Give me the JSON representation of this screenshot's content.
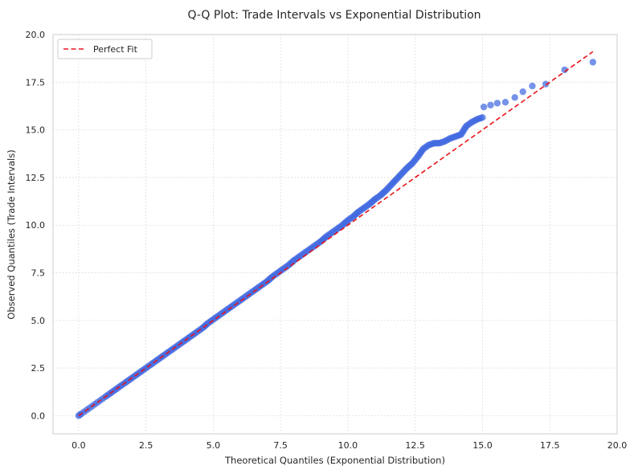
{
  "chart_data": {
    "type": "scatter",
    "title": "Q-Q Plot: Trade Intervals vs Exponential Distribution",
    "xlabel": "Theoretical Quantiles (Exponential Distribution)",
    "ylabel": "Observed Quantiles (Trade Intervals)",
    "xlim": [
      -0.95,
      20.0
    ],
    "ylim": [
      -0.95,
      20.0
    ],
    "xticks": [
      "0.0",
      "2.5",
      "5.0",
      "7.5",
      "10.0",
      "12.5",
      "15.0",
      "17.5",
      "20.0"
    ],
    "yticks": [
      "0.0",
      "2.5",
      "5.0",
      "7.5",
      "10.0",
      "12.5",
      "15.0",
      "17.5",
      "20.0"
    ],
    "grid": true,
    "legend_position": "top-left",
    "reference_line": {
      "name": "Perfect Fit",
      "x": [
        0,
        19.1
      ],
      "y": [
        0,
        19.1
      ],
      "color": "#e8141b",
      "style": "dashed"
    },
    "point_color": "#4169e1",
    "points": [
      [
        0.0,
        0.0
      ],
      [
        0.05,
        0.05
      ],
      [
        0.1,
        0.1
      ],
      [
        0.2,
        0.2
      ],
      [
        0.3,
        0.3
      ],
      [
        0.4,
        0.4
      ],
      [
        0.5,
        0.5
      ],
      [
        0.6,
        0.6
      ],
      [
        0.7,
        0.7
      ],
      [
        0.8,
        0.8
      ],
      [
        0.9,
        0.9
      ],
      [
        1.0,
        1.0
      ],
      [
        1.2,
        1.2
      ],
      [
        1.4,
        1.4
      ],
      [
        1.6,
        1.6
      ],
      [
        1.8,
        1.8
      ],
      [
        2.0,
        2.0
      ],
      [
        2.2,
        2.2
      ],
      [
        2.4,
        2.4
      ],
      [
        2.6,
        2.6
      ],
      [
        2.8,
        2.8
      ],
      [
        3.0,
        3.0
      ],
      [
        3.2,
        3.2
      ],
      [
        3.4,
        3.4
      ],
      [
        3.6,
        3.6
      ],
      [
        3.8,
        3.8
      ],
      [
        4.0,
        4.0
      ],
      [
        4.2,
        4.2
      ],
      [
        4.4,
        4.4
      ],
      [
        4.6,
        4.6
      ],
      [
        4.8,
        4.85
      ],
      [
        5.0,
        5.05
      ],
      [
        5.2,
        5.25
      ],
      [
        5.4,
        5.45
      ],
      [
        5.6,
        5.65
      ],
      [
        5.8,
        5.85
      ],
      [
        6.0,
        6.05
      ],
      [
        6.2,
        6.25
      ],
      [
        6.4,
        6.45
      ],
      [
        6.6,
        6.65
      ],
      [
        6.8,
        6.85
      ],
      [
        7.0,
        7.05
      ],
      [
        7.2,
        7.3
      ],
      [
        7.4,
        7.5
      ],
      [
        7.6,
        7.7
      ],
      [
        7.8,
        7.9
      ],
      [
        8.0,
        8.15
      ],
      [
        8.2,
        8.35
      ],
      [
        8.4,
        8.55
      ],
      [
        8.6,
        8.75
      ],
      [
        8.8,
        8.95
      ],
      [
        9.0,
        9.15
      ],
      [
        9.2,
        9.4
      ],
      [
        9.4,
        9.6
      ],
      [
        9.6,
        9.8
      ],
      [
        9.8,
        10.0
      ],
      [
        10.0,
        10.25
      ],
      [
        10.2,
        10.45
      ],
      [
        10.4,
        10.7
      ],
      [
        10.6,
        10.9
      ],
      [
        10.8,
        11.1
      ],
      [
        11.0,
        11.35
      ],
      [
        11.2,
        11.55
      ],
      [
        11.4,
        11.8
      ],
      [
        11.6,
        12.1
      ],
      [
        11.8,
        12.4
      ],
      [
        12.0,
        12.7
      ],
      [
        12.2,
        13.0
      ],
      [
        12.4,
        13.25
      ],
      [
        12.6,
        13.6
      ],
      [
        12.8,
        14.0
      ],
      [
        13.0,
        14.2
      ],
      [
        13.2,
        14.3
      ],
      [
        13.4,
        14.3
      ],
      [
        13.6,
        14.4
      ],
      [
        13.8,
        14.55
      ],
      [
        14.0,
        14.65
      ],
      [
        14.2,
        14.75
      ],
      [
        14.4,
        15.2
      ],
      [
        14.6,
        15.4
      ],
      [
        14.8,
        15.55
      ],
      [
        15.0,
        15.65
      ],
      [
        15.05,
        16.2
      ],
      [
        15.3,
        16.3
      ],
      [
        15.55,
        16.4
      ],
      [
        15.85,
        16.45
      ],
      [
        16.2,
        16.7
      ],
      [
        16.5,
        17.0
      ],
      [
        16.85,
        17.3
      ],
      [
        17.35,
        17.4
      ],
      [
        18.05,
        18.15
      ],
      [
        19.1,
        18.55
      ]
    ]
  }
}
